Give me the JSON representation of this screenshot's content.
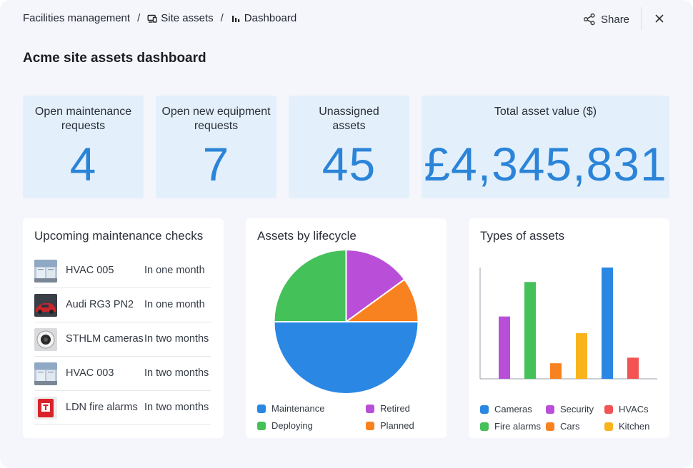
{
  "breadcrumb": {
    "items": [
      {
        "label": "Facilities management",
        "icon": ""
      },
      {
        "label": "Site assets",
        "icon": "devices-icon"
      },
      {
        "label": "Dashboard",
        "icon": "bar-chart-icon"
      }
    ],
    "separator": "/"
  },
  "header": {
    "share_label": "Share",
    "share_icon": "share-icon",
    "close_icon": "close-icon"
  },
  "page_title": "Acme site assets dashboard",
  "stats": [
    {
      "label": "Open maintenance requests",
      "value": "4"
    },
    {
      "label": "Open new equipment requests",
      "value": "7"
    },
    {
      "label": "Unassigned assets",
      "value": "45"
    },
    {
      "label": "Total asset value ($)",
      "value": "£4,345,831"
    }
  ],
  "maintenance": {
    "title": "Upcoming maintenance checks",
    "items": [
      {
        "name": "HVAC 005",
        "when": "In one month",
        "thumb": "hvac-thumbnail"
      },
      {
        "name": "Audi RG3 PN2",
        "when": "In one month",
        "thumb": "car-thumbnail"
      },
      {
        "name": "STHLM cameras",
        "when": "In two months",
        "thumb": "camera-thumbnail"
      },
      {
        "name": "HVAC 003",
        "when": "In two months",
        "thumb": "hvac-thumbnail"
      },
      {
        "name": "LDN fire alarms",
        "when": "In two months",
        "thumb": "fire-alarm-thumbnail"
      }
    ]
  },
  "lifecycle": {
    "title": "Assets by lifecycle",
    "legend": [
      "Maintenance",
      "Retired",
      "Deploying",
      "Planned"
    ]
  },
  "types": {
    "title": "Types of assets",
    "legend": [
      "Cameras",
      "Security",
      "HVACs",
      "Fire alarms",
      "Cars",
      "Kitchen"
    ]
  },
  "colors": {
    "accent": "#2b84d8",
    "stat_bg": "#e3f0fb",
    "maintenance": "#2a87e4",
    "retired": "#b94fd8",
    "deploying": "#45c15a",
    "planned": "#f98220",
    "hvacs": "#f25454",
    "kitchen": "#f9b31b"
  },
  "chart_data": [
    {
      "type": "pie",
      "title": "Assets by lifecycle",
      "categories": [
        "Maintenance",
        "Retired",
        "Deploying",
        "Planned"
      ],
      "values": [
        50,
        15,
        25,
        10
      ],
      "colors": [
        "#2a87e4",
        "#b94fd8",
        "#45c15a",
        "#f98220"
      ],
      "legend": "bottom"
    },
    {
      "type": "bar",
      "title": "Types of assets",
      "categories": [
        "Security",
        "Fire alarms",
        "Cars",
        "Kitchen",
        "Cameras",
        "HVACs"
      ],
      "values": [
        56,
        87,
        14,
        41,
        100,
        19
      ],
      "colors": [
        "#b94fd8",
        "#45c15a",
        "#f98220",
        "#f9b31b",
        "#2a87e4",
        "#f25454"
      ],
      "ylim": [
        0,
        100
      ],
      "grid": false,
      "legend": "bottom"
    }
  ]
}
